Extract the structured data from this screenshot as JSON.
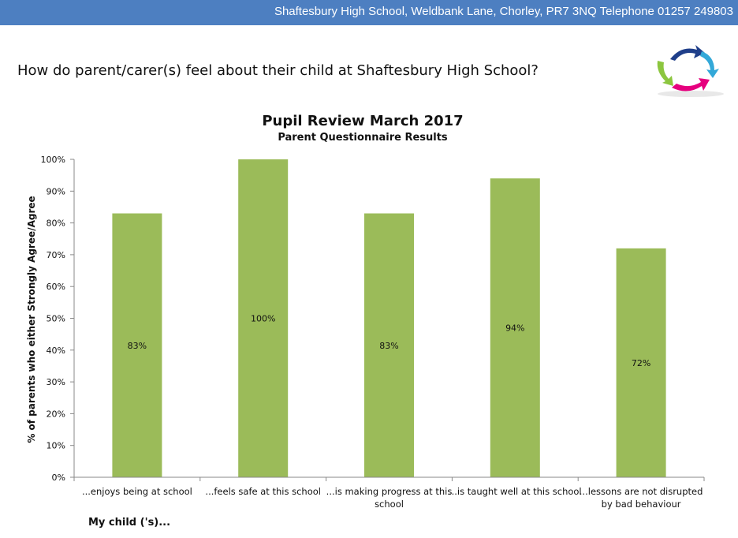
{
  "header": {
    "text": "Shaftesbury High School, Weldbank Lane, Chorley, PR7 3NQ Telephone 01257 249803",
    "color": "#4d7fc1"
  },
  "question": "How do parent/carer(s) feel about their child at Shaftesbury High School?",
  "logo": {
    "icon": "circular-arrows-logo-icon",
    "colors": [
      "#1f3f8a",
      "#33a8d8",
      "#8cc63f",
      "#e6007e"
    ]
  },
  "chart_data": {
    "type": "bar",
    "title": "Pupil Review March 2017",
    "subtitle": "Parent Questionnaire Results",
    "xlabel": "My child ('s)...",
    "ylabel": "% of parents who either Strongly Agree/Agree",
    "categories": [
      [
        "...enjoys being at school"
      ],
      [
        "...feels safe at this school"
      ],
      [
        "...is making progress at this",
        "school"
      ],
      [
        "...is taught well at this school"
      ],
      [
        "...lessons are not disrupted",
        "by bad behaviour"
      ]
    ],
    "values": [
      83,
      100,
      83,
      94,
      72
    ],
    "data_labels": [
      "83%",
      "100%",
      "83%",
      "94%",
      "72%"
    ],
    "ylim": [
      0,
      100
    ],
    "y_ticks": [
      "0%",
      "10%",
      "20%",
      "30%",
      "40%",
      "50%",
      "60%",
      "70%",
      "80%",
      "90%",
      "100%"
    ],
    "bar_color": "#9bbb59",
    "grid": false,
    "legend": "none"
  }
}
